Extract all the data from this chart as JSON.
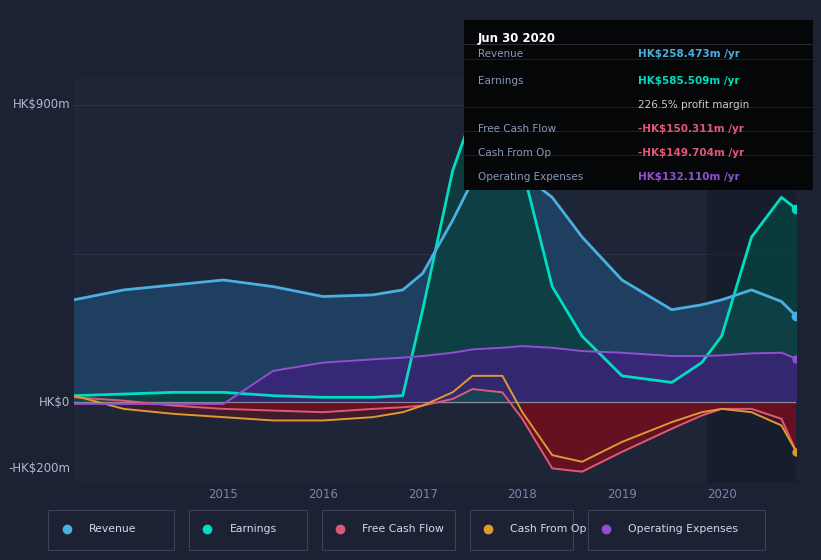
{
  "bg_color": "#1c2133",
  "plot_bg_color": "#1e2537",
  "dark_bg": "#161b28",
  "grid_color": "#2d3550",
  "zero_line_color": "#888899",
  "ylim": [
    -240,
    980
  ],
  "xlabel_color": "#7788aa",
  "ylabel_color": "#aabbcc",
  "years": [
    2013.5,
    2014.0,
    2014.5,
    2015.0,
    2015.5,
    2016.0,
    2016.5,
    2016.8,
    2017.0,
    2017.3,
    2017.5,
    2017.8,
    2018.0,
    2018.3,
    2018.6,
    2019.0,
    2019.5,
    2019.8,
    2020.0,
    2020.3,
    2020.6,
    2020.75
  ],
  "revenue": [
    310,
    340,
    355,
    370,
    350,
    320,
    325,
    340,
    390,
    550,
    670,
    710,
    690,
    620,
    500,
    370,
    280,
    295,
    310,
    340,
    305,
    260
  ],
  "earnings": [
    20,
    25,
    30,
    30,
    20,
    15,
    15,
    20,
    280,
    700,
    870,
    820,
    710,
    350,
    200,
    80,
    60,
    120,
    200,
    500,
    620,
    585
  ],
  "free_cash_flow": [
    15,
    5,
    -10,
    -20,
    -25,
    -30,
    -20,
    -15,
    -10,
    10,
    40,
    30,
    -50,
    -200,
    -210,
    -150,
    -80,
    -40,
    -20,
    -20,
    -50,
    -150
  ],
  "cash_from_op": [
    20,
    -20,
    -35,
    -45,
    -55,
    -55,
    -45,
    -30,
    -10,
    30,
    80,
    80,
    -30,
    -160,
    -180,
    -120,
    -60,
    -30,
    -20,
    -30,
    -70,
    -150
  ],
  "op_expenses": [
    -5,
    -5,
    -5,
    -5,
    95,
    120,
    130,
    135,
    140,
    150,
    160,
    165,
    170,
    165,
    155,
    150,
    140,
    140,
    142,
    148,
    150,
    132
  ],
  "revenue_color": "#4ab0e0",
  "earnings_color": "#00ddc0",
  "fcf_color": "#e05878",
  "cop_color": "#e09830",
  "opex_color": "#9050d0",
  "revenue_fill": "#1e3f60",
  "earnings_fill": "#0a4040",
  "opex_fill": "#402080",
  "neg_fill": "#6a1020",
  "tooltip_title": "Jun 30 2020",
  "tt_items": [
    {
      "label": "Revenue",
      "value": "HK$258.473m /yr",
      "vcolor": "#4ab0e0",
      "sep_before": false
    },
    {
      "label": "Earnings",
      "value": "HK$585.509m /yr",
      "vcolor": "#00ddc0",
      "sep_before": true
    },
    {
      "label": "",
      "value": "226.5% profit margin",
      "vcolor": "#cccccc",
      "sep_before": false
    },
    {
      "label": "Free Cash Flow",
      "value": "-HK$150.311m /yr",
      "vcolor": "#e05878",
      "sep_before": true
    },
    {
      "label": "Cash From Op",
      "value": "-HK$149.704m /yr",
      "vcolor": "#e05878",
      "sep_before": true
    },
    {
      "label": "Operating Expenses",
      "value": "HK$132.110m /yr",
      "vcolor": "#9050d0",
      "sep_before": true
    }
  ],
  "legend_items": [
    {
      "label": "Revenue",
      "color": "#4ab0e0"
    },
    {
      "label": "Earnings",
      "color": "#00ddc0"
    },
    {
      "label": "Free Cash Flow",
      "color": "#e05878"
    },
    {
      "label": "Cash From Op",
      "color": "#e09830"
    },
    {
      "label": "Operating Expenses",
      "color": "#9050d0"
    }
  ],
  "xmarkers": [
    2020.6
  ]
}
